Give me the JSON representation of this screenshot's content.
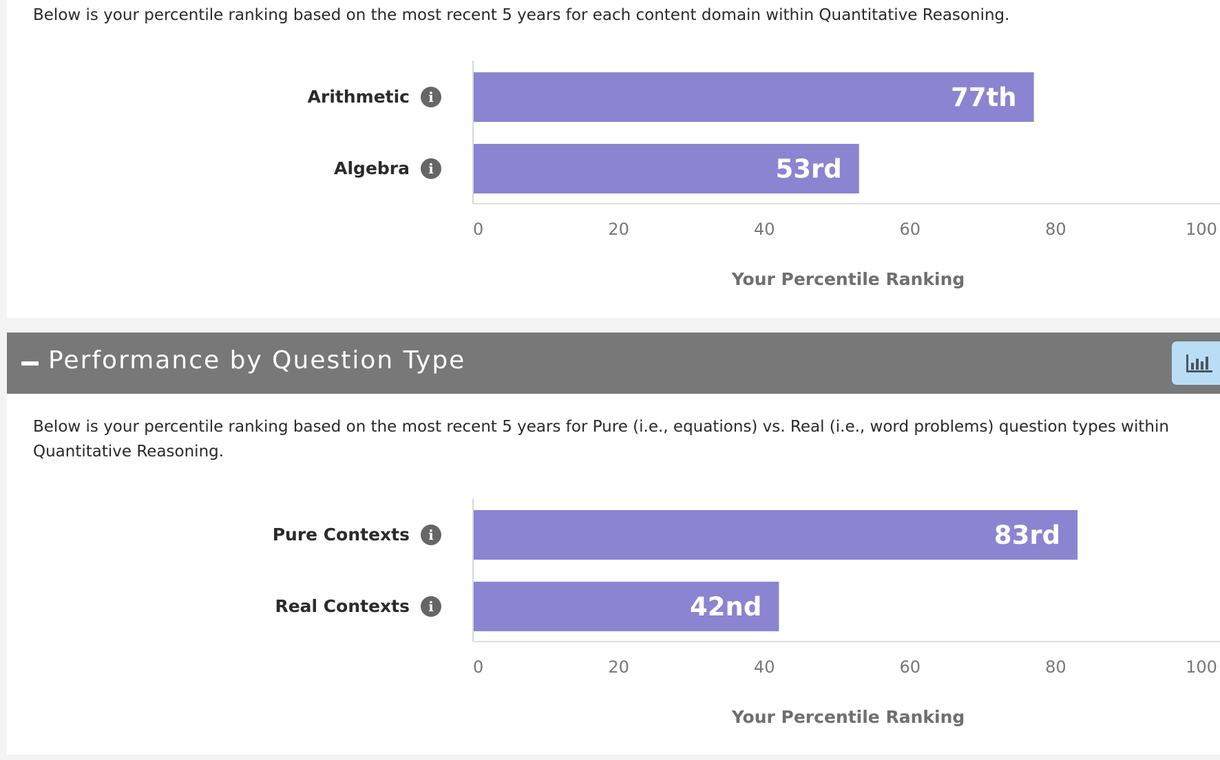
{
  "domain_section": {
    "description": "Below is your percentile ranking based on the most recent 5 years for each content domain within Quantitative Reasoning."
  },
  "question_type_section": {
    "title": "Performance by Question Type",
    "collapse_icon": "minus-icon",
    "chart_toggle_icon": "bar-chart-icon",
    "description": "Below is your percentile ranking based on the most recent 5 years for Pure (i.e., equations) vs. Real (i.e., word problems) question types within Quantitative Reasoning."
  },
  "colors": {
    "bar": "#8b84d1",
    "header": "#787878",
    "toggle": "#b9ddf5",
    "info_icon": "#666666"
  },
  "chart_data": [
    {
      "type": "bar",
      "orientation": "horizontal",
      "categories": [
        "Arithmetic",
        "Algebra"
      ],
      "values": [
        77,
        53
      ],
      "data_labels": [
        "77th",
        "53rd"
      ],
      "xlabel": "Your Percentile Ranking",
      "xlim": [
        0,
        100
      ],
      "xticks": [
        "0",
        "20",
        "40",
        "60",
        "80",
        "100"
      ],
      "category_icons": [
        "info-icon",
        "info-icon"
      ]
    },
    {
      "type": "bar",
      "orientation": "horizontal",
      "categories": [
        "Pure Contexts",
        "Real Contexts"
      ],
      "values": [
        83,
        42
      ],
      "data_labels": [
        "83rd",
        "42nd"
      ],
      "xlabel": "Your Percentile Ranking",
      "xlim": [
        0,
        100
      ],
      "xticks": [
        "0",
        "20",
        "40",
        "60",
        "80",
        "100"
      ],
      "category_icons": [
        "info-icon",
        "info-icon"
      ]
    }
  ]
}
